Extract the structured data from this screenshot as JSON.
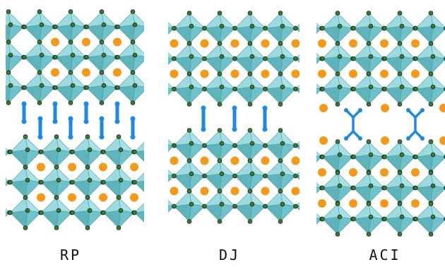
{
  "panels": [
    {
      "label": "RP"
    },
    {
      "label": "DJ"
    },
    {
      "label": "ACI"
    }
  ]
}
